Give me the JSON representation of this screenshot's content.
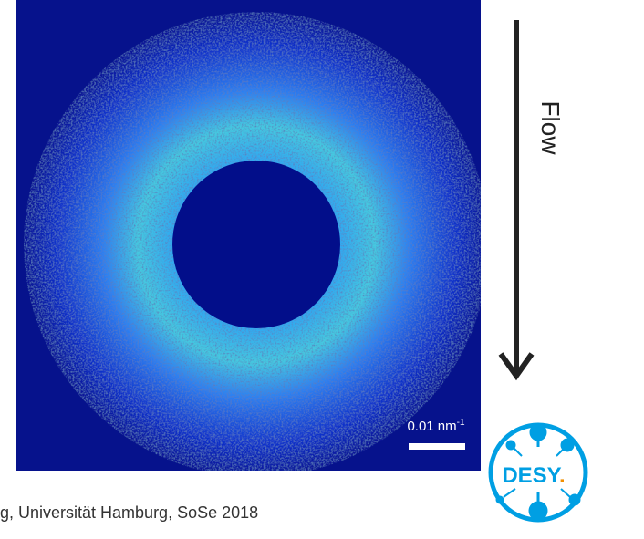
{
  "image": {
    "scale_bar": {
      "label": "0.01 nm",
      "exponent": "-1"
    }
  },
  "flow_label": "Flow",
  "footer": "g, Universität Hamburg, SoSe 2018",
  "logo": {
    "text": "DESY",
    "dot": "."
  }
}
